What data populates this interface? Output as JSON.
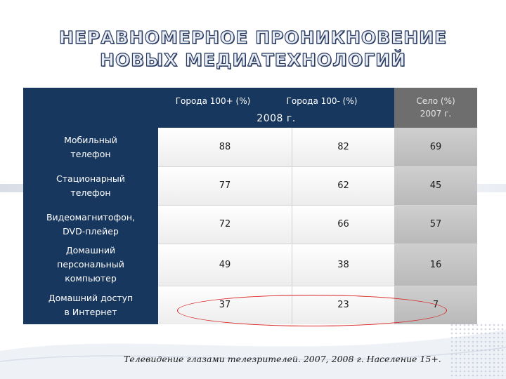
{
  "title": {
    "line1": "НЕРАВНОМЕРНОЕ ПРОНИКНОВЕНИЕ",
    "line2": "НОВЫХ МЕДИАТЕХНОЛОГИЙ"
  },
  "table": {
    "columns": [
      "Города 100+ (%)",
      "Города 100- (%)",
      "Село (%)\n2007 г."
    ],
    "year_label": "2008 г.",
    "rows": [
      {
        "label": "Мобильный\nтелефон",
        "values": [
          "88",
          "82",
          "69"
        ]
      },
      {
        "label": "Стационарный\nтелефон",
        "values": [
          "77",
          "62",
          "45"
        ]
      },
      {
        "label": "Видеомагнитофон,\nDVD-плейер",
        "values": [
          "72",
          "66",
          "57"
        ]
      },
      {
        "label": "Домашний\nперсональный\nкомпьютер",
        "values": [
          "49",
          "38",
          "16"
        ]
      },
      {
        "label": "Домашний доступ\nв Интернет",
        "values": [
          "37",
          "23",
          "7"
        ]
      }
    ]
  },
  "source": "Телевидение глазами телезрителей. 2007, 2008 г. Население 15+.",
  "colors": {
    "header_navy": "#18375e",
    "rural_gray": "#6e6e6e",
    "highlight_red": "#d82020"
  }
}
